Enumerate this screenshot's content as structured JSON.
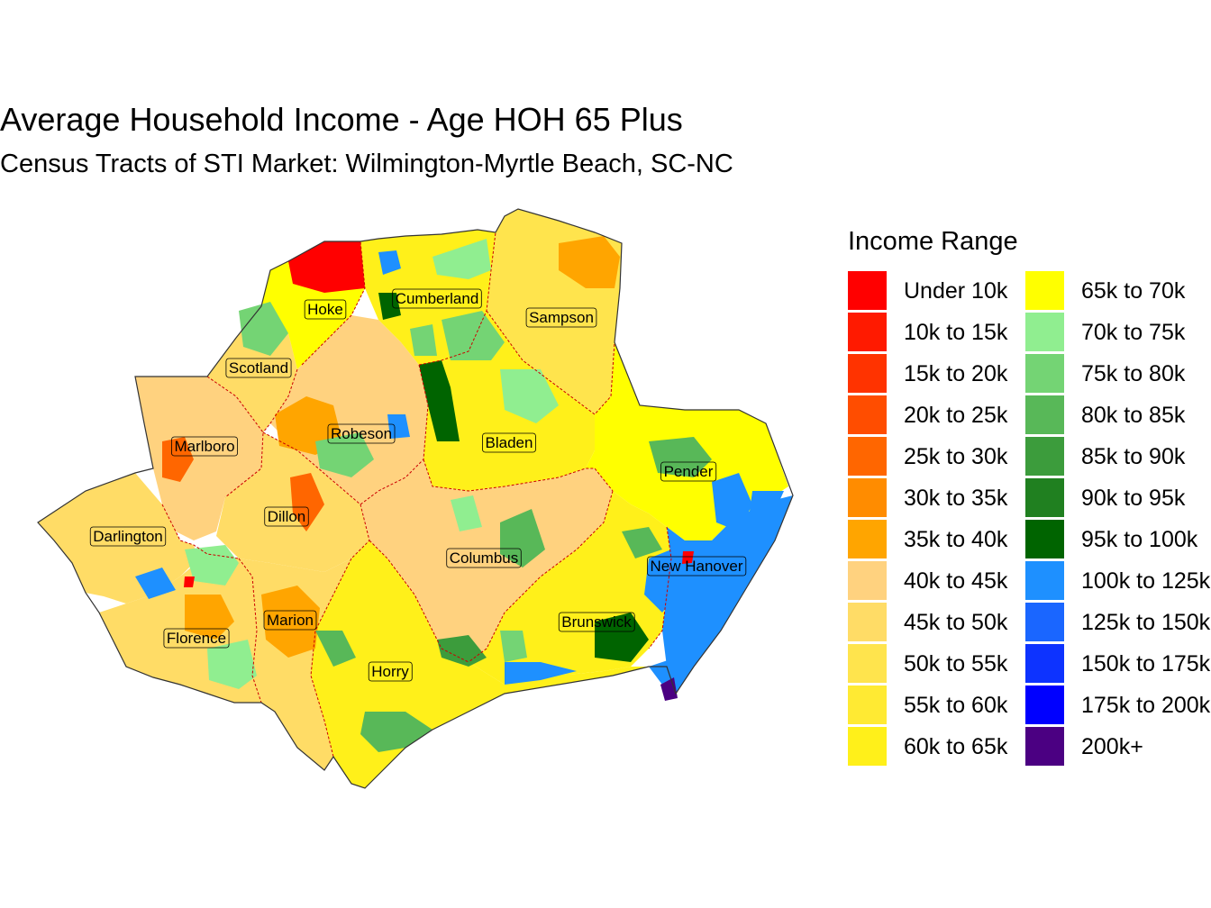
{
  "title": "Average Household Income - Age HOH 65 Plus",
  "subtitle": "Census Tracts of STI Market: Wilmington-Myrtle Beach, SC-NC",
  "legend": {
    "title": "Income Range",
    "items": [
      {
        "label": "Under 10k",
        "color": "#ff0000"
      },
      {
        "label": "10k to 15k",
        "color": "#ff1a00"
      },
      {
        "label": "15k to 20k",
        "color": "#ff3300"
      },
      {
        "label": "20k to 25k",
        "color": "#ff4d00"
      },
      {
        "label": "25k to 30k",
        "color": "#ff6600"
      },
      {
        "label": "30k to 35k",
        "color": "#ff8c00"
      },
      {
        "label": "35k to 40k",
        "color": "#ffa500"
      },
      {
        "label": "40k to 45k",
        "color": "#ffd27f"
      },
      {
        "label": "45k to 50k",
        "color": "#ffdc66"
      },
      {
        "label": "50k to 55k",
        "color": "#ffe44d"
      },
      {
        "label": "55k to 60k",
        "color": "#ffea33"
      },
      {
        "label": "60k to 65k",
        "color": "#fff01a"
      },
      {
        "label": "65k to 70k",
        "color": "#ffff00"
      },
      {
        "label": "70k to 75k",
        "color": "#90ee90"
      },
      {
        "label": "75k to 80k",
        "color": "#74d474"
      },
      {
        "label": "80k to 85k",
        "color": "#58b858"
      },
      {
        "label": "85k to 90k",
        "color": "#3c9c3c"
      },
      {
        "label": "90k to 95k",
        "color": "#208020"
      },
      {
        "label": "95k to 100k",
        "color": "#006400"
      },
      {
        "label": "100k to 125k",
        "color": "#1e90ff"
      },
      {
        "label": "125k to 150k",
        "color": "#1a66ff"
      },
      {
        "label": "150k to 175k",
        "color": "#0d33ff"
      },
      {
        "label": "175k to 200k",
        "color": "#0000ff"
      },
      {
        "label": "200k+",
        "color": "#4b0082"
      }
    ]
  },
  "counties": [
    {
      "name": "Hoke",
      "bin": "65k to 70k"
    },
    {
      "name": "Cumberland",
      "bin": "60k to 65k"
    },
    {
      "name": "Sampson",
      "bin": "50k to 55k"
    },
    {
      "name": "Scotland",
      "bin": "45k to 50k"
    },
    {
      "name": "Robeson",
      "bin": "40k to 45k"
    },
    {
      "name": "Bladen",
      "bin": "60k to 65k"
    },
    {
      "name": "Marlboro",
      "bin": "40k to 45k"
    },
    {
      "name": "Pender",
      "bin": "65k to 70k"
    },
    {
      "name": "Dillon",
      "bin": "45k to 50k"
    },
    {
      "name": "Darlington",
      "bin": "45k to 50k"
    },
    {
      "name": "Columbus",
      "bin": "40k to 45k"
    },
    {
      "name": "New Hanover",
      "bin": "100k to 125k"
    },
    {
      "name": "Marion",
      "bin": "45k to 50k"
    },
    {
      "name": "Brunswick",
      "bin": "60k to 65k"
    },
    {
      "name": "Florence",
      "bin": "45k to 50k"
    },
    {
      "name": "Horry",
      "bin": "60k to 65k"
    }
  ]
}
